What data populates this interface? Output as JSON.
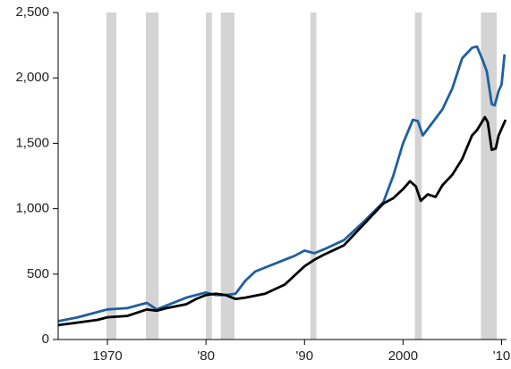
{
  "chart_data": {
    "type": "line",
    "xlim": [
      1965,
      2010.5
    ],
    "xticks": [
      {
        "value": 1970,
        "label": "1970"
      },
      {
        "value": 1980,
        "label": "'80"
      },
      {
        "value": 1990,
        "label": "'90"
      },
      {
        "value": 2000,
        "label": "2000"
      },
      {
        "value": 2010,
        "label": "'10"
      }
    ],
    "ylim": [
      0,
      2500
    ],
    "yticks": [
      0,
      500,
      {
        "value": 1000,
        "label": "1,000"
      },
      {
        "value": 1500,
        "label": "1,500"
      },
      {
        "value": 2000,
        "label": "2,000"
      },
      {
        "value": 2500,
        "label": "2,500"
      }
    ],
    "shaded_periods": [
      [
        1969.9,
        1970.9
      ],
      [
        1973.9,
        1975.2
      ],
      [
        1980.0,
        1980.6
      ],
      [
        1981.5,
        1982.9
      ],
      [
        1990.6,
        1991.2
      ],
      [
        2001.2,
        2001.9
      ],
      [
        2007.9,
        2009.5
      ]
    ],
    "shade_color": "#d4d4d4",
    "series": [
      {
        "color": "#1f5fa0",
        "x": [
          1965,
          1967,
          1969,
          1970,
          1972,
          1974,
          1975,
          1976,
          1978,
          1980,
          1981,
          1982,
          1983,
          1984,
          1985,
          1987,
          1989,
          1990,
          1991,
          1992,
          1994,
          1996,
          1998,
          1999,
          2000,
          2001,
          2001.5,
          2002,
          2003,
          2004,
          2005,
          2006,
          2007,
          2007.5,
          2008,
          2008.5,
          2009,
          2009.3,
          2009.7,
          2010,
          2010.3
        ],
        "values": [
          140,
          170,
          210,
          230,
          240,
          280,
          230,
          260,
          320,
          360,
          340,
          340,
          350,
          450,
          520,
          580,
          640,
          680,
          660,
          690,
          760,
          900,
          1050,
          1250,
          1500,
          1680,
          1670,
          1560,
          1660,
          1760,
          1920,
          2150,
          2230,
          2240,
          2150,
          2050,
          1800,
          1790,
          1900,
          1950,
          2180
        ]
      },
      {
        "color": "#000000",
        "x": [
          1965,
          1967,
          1969,
          1970,
          1972,
          1974,
          1975,
          1976,
          1978,
          1979,
          1980,
          1981,
          1982,
          1983,
          1984,
          1986,
          1988,
          1990,
          1991,
          1992,
          1994,
          1996,
          1998,
          1999,
          2000,
          2000.7,
          2001.3,
          2001.8,
          2002.5,
          2003.3,
          2004,
          2005,
          2006,
          2007,
          2007.5,
          2008.3,
          2008.6,
          2009,
          2009.4,
          2009.7,
          2010.4
        ],
        "values": [
          110,
          130,
          150,
          170,
          180,
          230,
          220,
          240,
          270,
          310,
          340,
          350,
          340,
          310,
          320,
          350,
          420,
          560,
          610,
          650,
          720,
          880,
          1040,
          1080,
          1150,
          1210,
          1170,
          1060,
          1110,
          1090,
          1180,
          1260,
          1380,
          1560,
          1600,
          1700,
          1660,
          1450,
          1460,
          1560,
          1680
        ]
      }
    ]
  }
}
